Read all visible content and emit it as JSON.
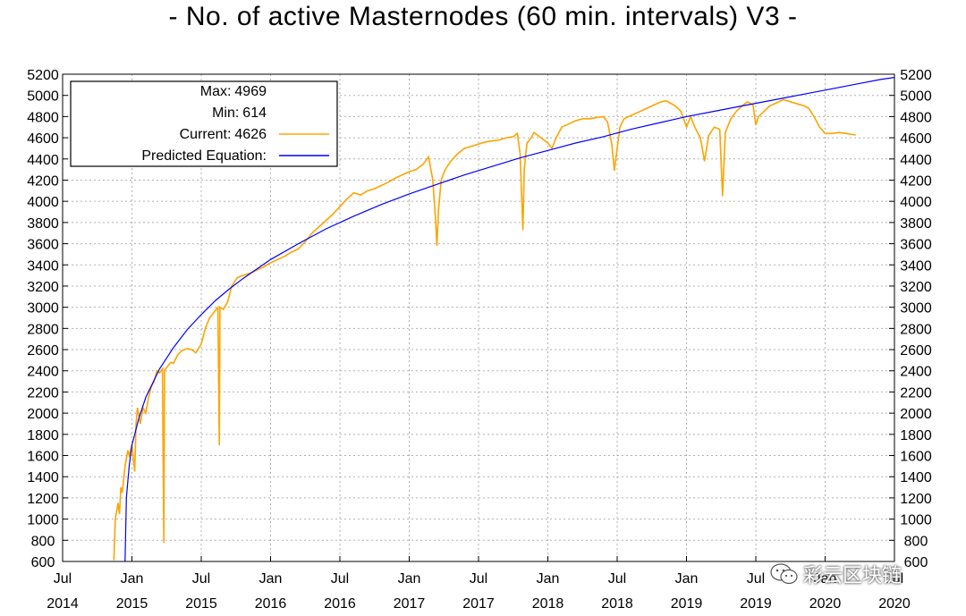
{
  "chart_data": {
    "type": "line",
    "title": "- No. of active Masternodes (60 min. intervals) V3 -",
    "xlabel": "",
    "ylabel": "",
    "ylim": [
      600,
      5200
    ],
    "y_ticks": [
      600,
      800,
      1000,
      1200,
      1400,
      1600,
      1800,
      2000,
      2200,
      2400,
      2600,
      2800,
      3000,
      3200,
      3400,
      3600,
      3800,
      4000,
      4200,
      4400,
      4600,
      4800,
      5000,
      5200
    ],
    "x_range": [
      2014.5,
      2020.5
    ],
    "x_ticks": [
      {
        "pos": 2014.5,
        "month": "Jul",
        "year": "2014"
      },
      {
        "pos": 2015.0,
        "month": "Jan",
        "year": "2015"
      },
      {
        "pos": 2015.5,
        "month": "Jul",
        "year": "2015"
      },
      {
        "pos": 2016.0,
        "month": "Jan",
        "year": "2016"
      },
      {
        "pos": 2016.5,
        "month": "Jul",
        "year": "2016"
      },
      {
        "pos": 2017.0,
        "month": "Jan",
        "year": "2017"
      },
      {
        "pos": 2017.5,
        "month": "Jul",
        "year": "2017"
      },
      {
        "pos": 2018.0,
        "month": "Jan",
        "year": "2018"
      },
      {
        "pos": 2018.5,
        "month": "Jul",
        "year": "2018"
      },
      {
        "pos": 2019.0,
        "month": "Jan",
        "year": "2019"
      },
      {
        "pos": 2019.5,
        "month": "Jul",
        "year": "2019"
      },
      {
        "pos": 2020.0,
        "month": "Jan",
        "year": "2020"
      },
      {
        "pos": 2020.5,
        "month": "Jul",
        "year": "2020"
      }
    ],
    "grid": true,
    "legend": {
      "position": "top-left",
      "max_label": "Max:",
      "max_value": "4969",
      "min_label": "Min:",
      "min_value": "614",
      "current_label": "Current:",
      "current_value": "4626",
      "predicted_label": "Predicted Equation:"
    },
    "series": [
      {
        "name": "Current",
        "color": "#ffa500",
        "points": [
          [
            2014.87,
            614
          ],
          [
            2014.88,
            1000
          ],
          [
            2014.9,
            1150
          ],
          [
            2014.91,
            1050
          ],
          [
            2014.92,
            1300
          ],
          [
            2014.93,
            1250
          ],
          [
            2014.95,
            1500
          ],
          [
            2014.97,
            1650
          ],
          [
            2014.98,
            1600
          ],
          [
            2015.0,
            1700
          ],
          [
            2015.02,
            1450
          ],
          [
            2015.03,
            1900
          ],
          [
            2015.04,
            2050
          ],
          [
            2015.06,
            1900
          ],
          [
            2015.08,
            2050
          ],
          [
            2015.1,
            2000
          ],
          [
            2015.12,
            2150
          ],
          [
            2015.14,
            2250
          ],
          [
            2015.16,
            2300
          ],
          [
            2015.18,
            2400
          ],
          [
            2015.2,
            2380
          ],
          [
            2015.22,
            2420
          ],
          [
            2015.23,
            780
          ],
          [
            2015.235,
            2400
          ],
          [
            2015.25,
            2430
          ],
          [
            2015.28,
            2480
          ],
          [
            2015.3,
            2470
          ],
          [
            2015.33,
            2550
          ],
          [
            2015.36,
            2590
          ],
          [
            2015.4,
            2610
          ],
          [
            2015.43,
            2600
          ],
          [
            2015.46,
            2570
          ],
          [
            2015.5,
            2650
          ],
          [
            2015.53,
            2800
          ],
          [
            2015.56,
            2900
          ],
          [
            2015.59,
            2950
          ],
          [
            2015.62,
            3000
          ],
          [
            2015.63,
            1700
          ],
          [
            2015.635,
            3000
          ],
          [
            2015.66,
            2980
          ],
          [
            2015.69,
            3050
          ],
          [
            2015.72,
            3200
          ],
          [
            2015.76,
            3280
          ],
          [
            2015.8,
            3300
          ],
          [
            2015.85,
            3320
          ],
          [
            2015.9,
            3350
          ],
          [
            2015.95,
            3380
          ],
          [
            2016.0,
            3420
          ],
          [
            2016.05,
            3450
          ],
          [
            2016.1,
            3480
          ],
          [
            2016.15,
            3520
          ],
          [
            2016.2,
            3550
          ],
          [
            2016.25,
            3620
          ],
          [
            2016.3,
            3700
          ],
          [
            2016.35,
            3760
          ],
          [
            2016.4,
            3820
          ],
          [
            2016.45,
            3880
          ],
          [
            2016.5,
            3950
          ],
          [
            2016.55,
            4020
          ],
          [
            2016.6,
            4080
          ],
          [
            2016.65,
            4060
          ],
          [
            2016.7,
            4100
          ],
          [
            2016.75,
            4120
          ],
          [
            2016.8,
            4150
          ],
          [
            2016.85,
            4180
          ],
          [
            2016.9,
            4220
          ],
          [
            2016.95,
            4250
          ],
          [
            2017.0,
            4280
          ],
          [
            2017.05,
            4300
          ],
          [
            2017.1,
            4350
          ],
          [
            2017.14,
            4420
          ],
          [
            2017.17,
            4200
          ],
          [
            2017.19,
            3820
          ],
          [
            2017.2,
            3580
          ],
          [
            2017.21,
            3900
          ],
          [
            2017.23,
            4200
          ],
          [
            2017.26,
            4300
          ],
          [
            2017.3,
            4380
          ],
          [
            2017.35,
            4450
          ],
          [
            2017.4,
            4500
          ],
          [
            2017.45,
            4520
          ],
          [
            2017.5,
            4540
          ],
          [
            2017.55,
            4560
          ],
          [
            2017.6,
            4570
          ],
          [
            2017.65,
            4580
          ],
          [
            2017.7,
            4600
          ],
          [
            2017.75,
            4610
          ],
          [
            2017.78,
            4640
          ],
          [
            2017.8,
            4450
          ],
          [
            2017.82,
            3730
          ],
          [
            2017.83,
            4300
          ],
          [
            2017.85,
            4550
          ],
          [
            2017.88,
            4600
          ],
          [
            2017.9,
            4650
          ],
          [
            2017.95,
            4600
          ],
          [
            2018.0,
            4550
          ],
          [
            2018.03,
            4500
          ],
          [
            2018.06,
            4600
          ],
          [
            2018.1,
            4700
          ],
          [
            2018.15,
            4730
          ],
          [
            2018.2,
            4760
          ],
          [
            2018.25,
            4780
          ],
          [
            2018.3,
            4780
          ],
          [
            2018.35,
            4790
          ],
          [
            2018.4,
            4800
          ],
          [
            2018.43,
            4750
          ],
          [
            2018.46,
            4550
          ],
          [
            2018.48,
            4290
          ],
          [
            2018.5,
            4500
          ],
          [
            2018.52,
            4700
          ],
          [
            2018.55,
            4780
          ],
          [
            2018.6,
            4810
          ],
          [
            2018.65,
            4840
          ],
          [
            2018.7,
            4870
          ],
          [
            2018.75,
            4900
          ],
          [
            2018.8,
            4930
          ],
          [
            2018.85,
            4950
          ],
          [
            2018.88,
            4930
          ],
          [
            2018.92,
            4900
          ],
          [
            2018.96,
            4850
          ],
          [
            2019.0,
            4700
          ],
          [
            2019.03,
            4800
          ],
          [
            2019.06,
            4700
          ],
          [
            2019.1,
            4600
          ],
          [
            2019.13,
            4380
          ],
          [
            2019.16,
            4620
          ],
          [
            2019.2,
            4700
          ],
          [
            2019.24,
            4680
          ],
          [
            2019.26,
            4050
          ],
          [
            2019.28,
            4650
          ],
          [
            2019.32,
            4780
          ],
          [
            2019.36,
            4850
          ],
          [
            2019.4,
            4900
          ],
          [
            2019.44,
            4940
          ],
          [
            2019.48,
            4910
          ],
          [
            2019.5,
            4720
          ],
          [
            2019.52,
            4800
          ],
          [
            2019.56,
            4850
          ],
          [
            2019.6,
            4900
          ],
          [
            2019.65,
            4930
          ],
          [
            2019.7,
            4960
          ],
          [
            2019.75,
            4940
          ],
          [
            2019.8,
            4920
          ],
          [
            2019.85,
            4900
          ],
          [
            2019.88,
            4880
          ],
          [
            2019.92,
            4800
          ],
          [
            2019.96,
            4700
          ],
          [
            2020.0,
            4640
          ],
          [
            2020.05,
            4640
          ],
          [
            2020.1,
            4650
          ],
          [
            2020.15,
            4640
          ],
          [
            2020.2,
            4630
          ],
          [
            2020.22,
            4626
          ]
        ]
      },
      {
        "name": "Predicted Equation",
        "color": "#0000ff",
        "points": [
          [
            2014.95,
            600
          ],
          [
            2014.96,
            1200
          ],
          [
            2014.98,
            1500
          ],
          [
            2015.0,
            1700
          ],
          [
            2015.05,
            1950
          ],
          [
            2015.1,
            2150
          ],
          [
            2015.2,
            2420
          ],
          [
            2015.3,
            2620
          ],
          [
            2015.4,
            2790
          ],
          [
            2015.5,
            2930
          ],
          [
            2015.6,
            3060
          ],
          [
            2015.7,
            3170
          ],
          [
            2015.8,
            3270
          ],
          [
            2016.0,
            3450
          ],
          [
            2016.2,
            3600
          ],
          [
            2016.4,
            3740
          ],
          [
            2016.6,
            3860
          ],
          [
            2016.8,
            3970
          ],
          [
            2017.0,
            4070
          ],
          [
            2017.2,
            4160
          ],
          [
            2017.4,
            4250
          ],
          [
            2017.6,
            4330
          ],
          [
            2017.8,
            4410
          ],
          [
            2018.0,
            4480
          ],
          [
            2018.2,
            4550
          ],
          [
            2018.4,
            4610
          ],
          [
            2018.6,
            4680
          ],
          [
            2018.8,
            4740
          ],
          [
            2019.0,
            4800
          ],
          [
            2019.2,
            4850
          ],
          [
            2019.4,
            4900
          ],
          [
            2019.6,
            4950
          ],
          [
            2019.8,
            5000
          ],
          [
            2020.0,
            5050
          ],
          [
            2020.2,
            5100
          ],
          [
            2020.4,
            5150
          ],
          [
            2020.5,
            5170
          ]
        ]
      }
    ]
  },
  "watermark": {
    "text": "彩云区块链",
    "icon": "wechat-icon"
  }
}
